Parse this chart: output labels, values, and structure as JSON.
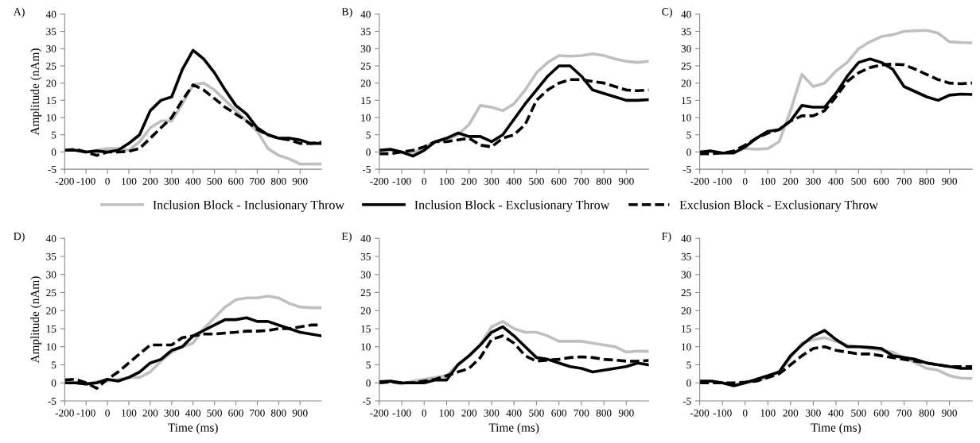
{
  "chart_data": [
    {
      "type": "line",
      "title": "A)",
      "legend": "bottom",
      "ylabel": "Amplitude (nAm)",
      "x": [
        -200,
        -150,
        -100,
        -50,
        0,
        50,
        100,
        150,
        200,
        250,
        300,
        350,
        400,
        450,
        500,
        550,
        600,
        650,
        700,
        750,
        800,
        850,
        900,
        950,
        1000
      ],
      "xlim": [
        -200,
        1000
      ],
      "xticks": [
        -200,
        -100,
        0,
        100,
        200,
        300,
        400,
        500,
        600,
        700,
        800,
        900
      ],
      "ylim": [
        -5,
        40
      ],
      "yticks": [
        -5,
        0,
        5,
        10,
        15,
        20,
        25,
        30,
        35,
        40
      ],
      "grid": false,
      "series": [
        {
          "name": "Inclusion Block - Inclusionary Throw",
          "color": "#bfbfbf",
          "line_style": "solid",
          "values": [
            0.5,
            0.5,
            0,
            0.5,
            1,
            1,
            0.5,
            3,
            7,
            9,
            9,
            14,
            19.5,
            20,
            18,
            15,
            12,
            9,
            6,
            1,
            -1,
            -2,
            -3.5,
            -3.5,
            -3.5
          ]
        },
        {
          "name": "Inclusion Block - Exclusionary Throw",
          "color": "#000000",
          "line_style": "solid",
          "values": [
            0.5,
            0.5,
            0,
            0.3,
            0,
            0.5,
            2.5,
            5,
            12,
            15,
            16,
            24,
            29.5,
            27,
            23,
            18,
            13.5,
            11,
            7,
            5,
            4,
            4,
            3.5,
            2.5,
            2.5
          ]
        },
        {
          "name": "Exclusion Block - Exclusionary Throw",
          "color": "#000000",
          "line_style": "dashed",
          "values": [
            0.5,
            0.8,
            0,
            -1,
            0,
            0,
            0.2,
            1,
            4,
            7,
            10,
            15,
            19.5,
            18,
            15.5,
            13,
            11,
            9,
            6.5,
            5,
            4,
            3.5,
            2.5,
            2.5,
            2.8
          ]
        }
      ]
    },
    {
      "type": "line",
      "title": "B)",
      "x": [
        -200,
        -150,
        -100,
        -50,
        0,
        50,
        100,
        150,
        200,
        250,
        300,
        350,
        400,
        450,
        500,
        550,
        600,
        650,
        700,
        750,
        800,
        850,
        900,
        950,
        1000
      ],
      "xlim": [
        -200,
        1000
      ],
      "xticks": [
        -200,
        -100,
        0,
        100,
        200,
        300,
        400,
        500,
        600,
        700,
        800,
        900
      ],
      "ylim": [
        -5,
        40
      ],
      "yticks": [
        -5,
        0,
        5,
        10,
        15,
        20,
        25,
        30,
        35,
        40
      ],
      "grid": false,
      "series": [
        {
          "color": "#bfbfbf",
          "line_style": "solid",
          "values": [
            0.5,
            0.5,
            0,
            -0.5,
            1.5,
            3,
            3.5,
            5,
            8,
            13.5,
            13,
            12,
            14,
            18,
            23,
            26,
            28,
            27.8,
            28,
            28.5,
            28,
            27,
            26.3,
            26,
            26.3
          ]
        },
        {
          "color": "#000000",
          "line_style": "solid",
          "values": [
            0.5,
            0.8,
            0,
            -1.2,
            0.5,
            3,
            4,
            5.5,
            4.5,
            4.5,
            3,
            5,
            9.5,
            14,
            18,
            22,
            25,
            25,
            22,
            18,
            17,
            16,
            15,
            15,
            15.2
          ]
        },
        {
          "color": "#000000",
          "line_style": "dashed",
          "values": [
            -0.5,
            -0.5,
            0,
            0.5,
            1.5,
            3,
            3,
            3.5,
            4,
            2,
            1.5,
            4,
            5,
            8,
            15,
            18,
            20,
            21,
            21,
            20.5,
            20,
            19,
            18,
            17.8,
            18
          ]
        }
      ]
    },
    {
      "type": "line",
      "title": "C)",
      "x": [
        -200,
        -150,
        -100,
        -50,
        0,
        50,
        100,
        150,
        200,
        250,
        300,
        350,
        400,
        450,
        500,
        550,
        600,
        650,
        700,
        750,
        800,
        850,
        900,
        950,
        1000
      ],
      "xlim": [
        -200,
        1000
      ],
      "xticks": [
        -200,
        -100,
        0,
        100,
        200,
        300,
        400,
        500,
        600,
        700,
        800,
        900
      ],
      "ylim": [
        -5,
        40
      ],
      "yticks": [
        -5,
        0,
        5,
        10,
        15,
        20,
        25,
        30,
        35,
        40
      ],
      "grid": false,
      "series": [
        {
          "color": "#bfbfbf",
          "line_style": "solid",
          "values": [
            0,
            0.3,
            -0.3,
            0,
            1,
            0.8,
            1,
            3,
            12,
            22.5,
            19,
            20,
            23.5,
            26,
            30,
            32,
            33.5,
            34,
            35,
            35.2,
            35.3,
            34.5,
            32,
            31.8,
            31.7
          ]
        },
        {
          "color": "#000000",
          "line_style": "solid",
          "values": [
            0,
            0.3,
            -0.3,
            -0.3,
            1.5,
            4,
            6,
            6.5,
            9,
            13.5,
            13,
            13,
            17,
            22,
            26,
            27,
            26,
            24,
            19,
            17.5,
            16,
            15,
            16.5,
            16.8,
            16.7
          ]
        },
        {
          "color": "#000000",
          "line_style": "dashed",
          "values": [
            -0.5,
            -0.5,
            -0.3,
            0.3,
            2,
            4,
            5.5,
            6.5,
            9,
            10.5,
            10.5,
            12,
            16,
            20.5,
            23,
            24.5,
            25.3,
            25.5,
            25.3,
            24,
            22.5,
            21,
            20,
            19.8,
            20
          ]
        }
      ]
    },
    {
      "type": "line",
      "title": "D)",
      "ylabel": "Amplitude (nAm)",
      "xlabel": "Time (ms)",
      "x": [
        -200,
        -150,
        -100,
        -50,
        0,
        50,
        100,
        150,
        200,
        250,
        300,
        350,
        400,
        450,
        500,
        550,
        600,
        650,
        700,
        750,
        800,
        850,
        900,
        950,
        1000
      ],
      "xlim": [
        -200,
        1000
      ],
      "xticks": [
        -200,
        -100,
        0,
        100,
        200,
        300,
        400,
        500,
        600,
        700,
        800,
        900
      ],
      "ylim": [
        -5,
        40
      ],
      "yticks": [
        -5,
        0,
        5,
        10,
        15,
        20,
        25,
        30,
        35,
        40
      ],
      "grid": false,
      "series": [
        {
          "color": "#bfbfbf",
          "line_style": "solid",
          "values": [
            0,
            0,
            -0.3,
            0.3,
            0.5,
            1,
            1.5,
            1.5,
            3,
            6,
            8.5,
            10,
            11,
            15,
            18,
            21,
            23,
            23.5,
            23.5,
            24,
            23.5,
            22,
            21,
            20.8,
            20.8
          ]
        },
        {
          "color": "#000000",
          "line_style": "solid",
          "values": [
            0,
            0,
            -0.3,
            0,
            1,
            0.5,
            1.5,
            3,
            5.5,
            6.5,
            9,
            10,
            13,
            14.5,
            16,
            17.5,
            17.5,
            18,
            17,
            17,
            16,
            15,
            14,
            13.5,
            13
          ]
        },
        {
          "color": "#000000",
          "line_style": "dashed",
          "values": [
            0.8,
            1,
            0,
            -1.5,
            1,
            3,
            5.5,
            8,
            10.5,
            10.5,
            10.5,
            12.5,
            13,
            13.5,
            13.5,
            13.8,
            14,
            14.3,
            14.3,
            14.5,
            15,
            15,
            15.5,
            16,
            16
          ]
        }
      ]
    },
    {
      "type": "line",
      "title": "E)",
      "xlabel": "Time (ms)",
      "x": [
        -200,
        -150,
        -100,
        -50,
        0,
        50,
        100,
        150,
        200,
        250,
        300,
        350,
        400,
        450,
        500,
        550,
        600,
        650,
        700,
        750,
        800,
        850,
        900,
        950,
        1000
      ],
      "xlim": [
        -200,
        1000
      ],
      "xticks": [
        -200,
        -100,
        0,
        100,
        200,
        300,
        400,
        500,
        600,
        700,
        800,
        900
      ],
      "ylim": [
        -5,
        40
      ],
      "yticks": [
        -5,
        0,
        5,
        10,
        15,
        20,
        25,
        30,
        35,
        40
      ],
      "grid": false,
      "series": [
        {
          "color": "#bfbfbf",
          "line_style": "solid",
          "values": [
            0,
            0.3,
            -0.3,
            0.5,
            1,
            1.5,
            2,
            5,
            7.5,
            10.5,
            15.5,
            17,
            15,
            14,
            14,
            13,
            11.5,
            11.5,
            11.5,
            11,
            10.5,
            10,
            8.5,
            8.8,
            8.7
          ]
        },
        {
          "color": "#000000",
          "line_style": "solid",
          "values": [
            0.3,
            0.5,
            0,
            0,
            0,
            0.8,
            0.8,
            5,
            7.5,
            10.5,
            14,
            15.5,
            13,
            10,
            7,
            6.5,
            5.5,
            4.5,
            4,
            3,
            3.5,
            4,
            4.5,
            5.5,
            5
          ]
        },
        {
          "color": "#000000",
          "line_style": "dashed",
          "values": [
            0,
            0.3,
            0,
            0,
            0.5,
            1,
            2,
            3,
            4,
            7,
            12,
            13,
            11,
            7.5,
            6,
            6.3,
            6.5,
            7,
            7.2,
            7,
            6.5,
            6.3,
            6,
            6,
            6.2
          ]
        }
      ]
    },
    {
      "type": "line",
      "title": "F)",
      "xlabel": "Time (ms)",
      "x": [
        -200,
        -150,
        -100,
        -50,
        0,
        50,
        100,
        150,
        200,
        250,
        300,
        350,
        400,
        450,
        500,
        550,
        600,
        650,
        700,
        750,
        800,
        850,
        900,
        950,
        1000
      ],
      "xlim": [
        -200,
        1000
      ],
      "xticks": [
        -200,
        -100,
        0,
        100,
        200,
        300,
        400,
        500,
        600,
        700,
        800,
        900
      ],
      "ylim": [
        -5,
        40
      ],
      "yticks": [
        -5,
        0,
        5,
        10,
        15,
        20,
        25,
        30,
        35,
        40
      ],
      "grid": false,
      "series": [
        {
          "color": "#bfbfbf",
          "line_style": "solid",
          "values": [
            0.3,
            0.5,
            0,
            -0.5,
            0,
            0.5,
            1.5,
            3,
            7,
            11,
            12,
            12.5,
            11.5,
            10.5,
            10,
            9.5,
            9,
            8.5,
            7,
            5.5,
            4,
            3.5,
            2,
            1.3,
            1.2
          ]
        },
        {
          "color": "#000000",
          "line_style": "solid",
          "values": [
            0.5,
            0.5,
            0,
            -0.8,
            0,
            1,
            2,
            3,
            7.5,
            10.5,
            13,
            14.5,
            12,
            10,
            10,
            9.8,
            9.5,
            7.5,
            7,
            6.5,
            5.5,
            5,
            4.5,
            4,
            4
          ]
        },
        {
          "color": "#000000",
          "line_style": "dashed",
          "values": [
            0,
            0,
            0,
            0,
            0.2,
            0.5,
            1.5,
            2.5,
            5,
            7.5,
            9.5,
            10,
            9,
            8.5,
            8,
            8,
            7.5,
            7,
            6.5,
            6,
            5.5,
            5,
            4.5,
            4.5,
            4.5
          ]
        }
      ]
    }
  ]
}
